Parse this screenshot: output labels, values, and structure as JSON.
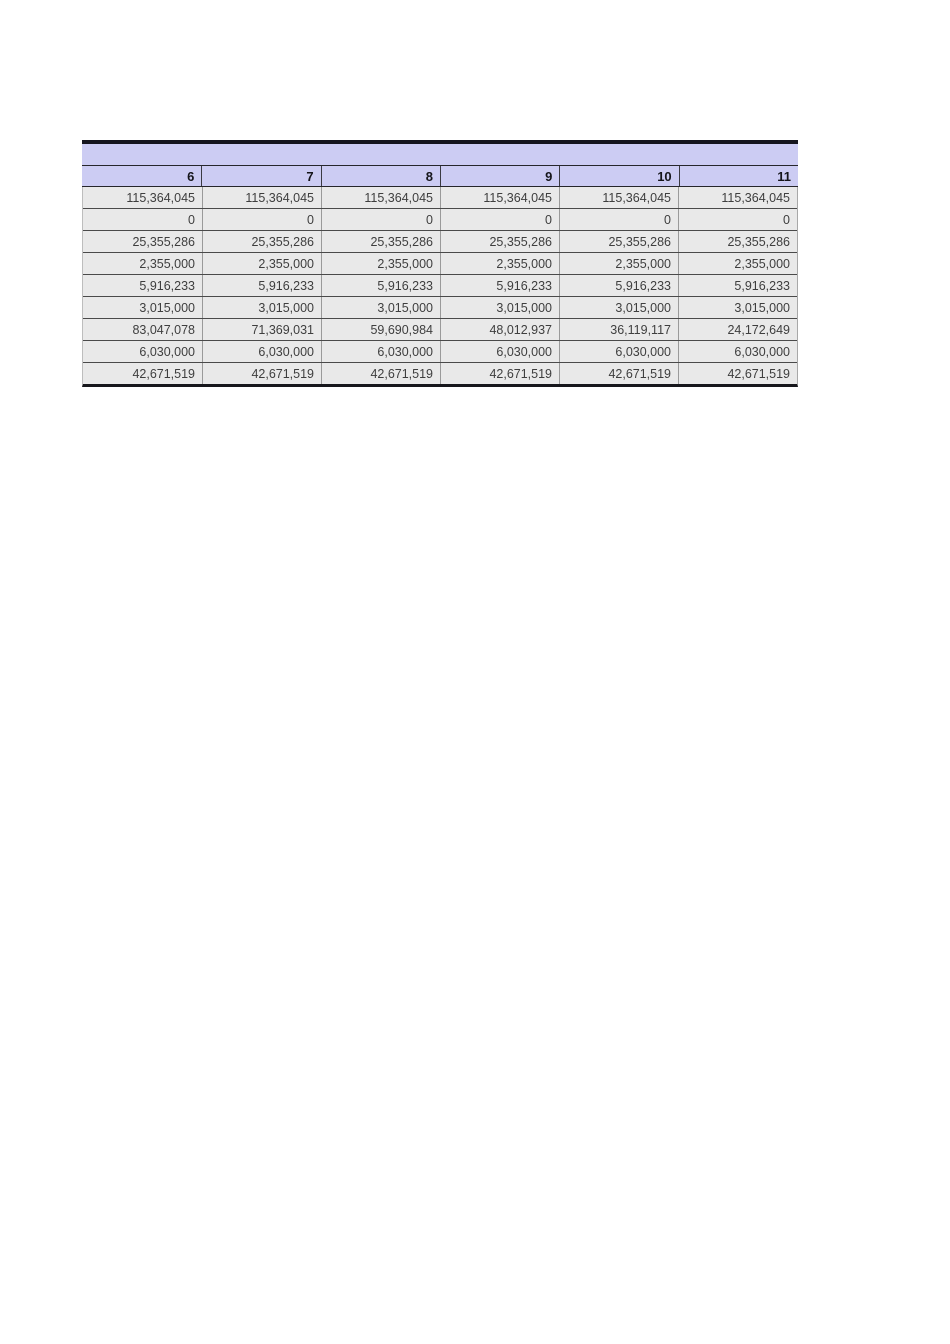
{
  "page": {
    "background": "#ffffff"
  },
  "table": {
    "accent_bar_color": "#15151e",
    "header_bg": "#ccccf3",
    "data_bg": "#e9e9e9",
    "bottom_border_color": "#17171c",
    "columns": [
      "6",
      "7",
      "8",
      "9",
      "10",
      "11"
    ],
    "rows": [
      [
        "115,364,045",
        "115,364,045",
        "115,364,045",
        "115,364,045",
        "115,364,045",
        "115,364,045"
      ],
      [
        "0",
        "0",
        "0",
        "0",
        "0",
        "0"
      ],
      [
        "25,355,286",
        "25,355,286",
        "25,355,286",
        "25,355,286",
        "25,355,286",
        "25,355,286"
      ],
      [
        "2,355,000",
        "2,355,000",
        "2,355,000",
        "2,355,000",
        "2,355,000",
        "2,355,000"
      ],
      [
        "5,916,233",
        "5,916,233",
        "5,916,233",
        "5,916,233",
        "5,916,233",
        "5,916,233"
      ],
      [
        "3,015,000",
        "3,015,000",
        "3,015,000",
        "3,015,000",
        "3,015,000",
        "3,015,000"
      ],
      [
        "83,047,078",
        "71,369,031",
        "59,690,984",
        "48,012,937",
        "36,119,117",
        "24,172,649"
      ],
      [
        "6,030,000",
        "6,030,000",
        "6,030,000",
        "6,030,000",
        "6,030,000",
        "6,030,000"
      ],
      [
        "42,671,519",
        "42,671,519",
        "42,671,519",
        "42,671,519",
        "42,671,519",
        "42,671,519"
      ]
    ]
  }
}
